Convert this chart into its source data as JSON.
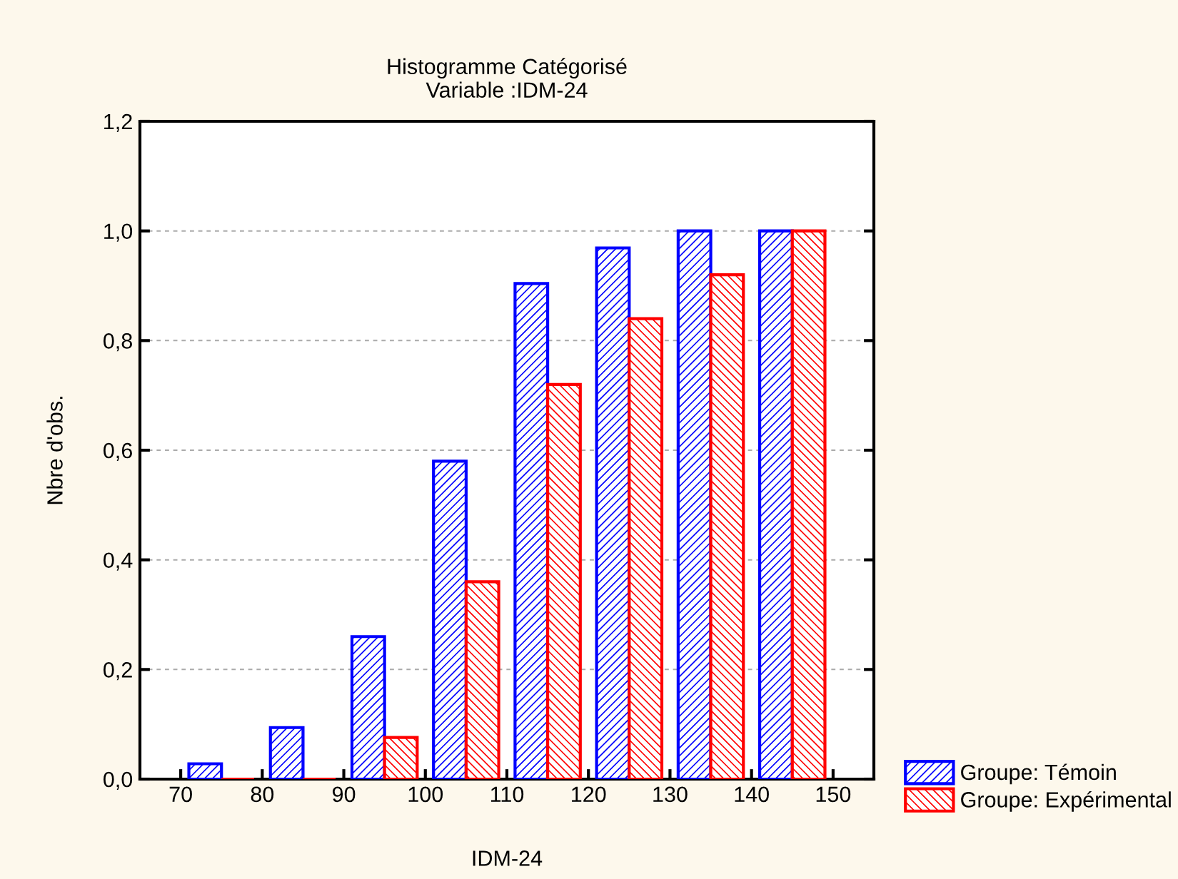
{
  "chart_data": {
    "type": "histogram",
    "title": "Histogramme Catégorisé\nVariable :IDM-24",
    "xlabel": "IDM-24",
    "ylabel": "Nbre d'obs.",
    "bins": [
      70,
      80,
      90,
      100,
      110,
      120,
      130,
      140,
      150
    ],
    "series": [
      {
        "name": "Groupe: Témoin",
        "color": "#0000ff",
        "values": [
          0.028,
          0.094,
          0.26,
          0.58,
          0.904,
          0.969,
          1.0,
          1.0
        ]
      },
      {
        "name": "Groupe: Expérimental",
        "color": "#ff0000",
        "values": [
          0,
          0,
          0.076,
          0.36,
          0.72,
          0.84,
          0.92,
          1.0
        ]
      }
    ],
    "xlim": [
      65,
      155
    ],
    "xticks": [
      70,
      80,
      90,
      100,
      110,
      120,
      130,
      140,
      150
    ],
    "ylim": [
      0,
      1.2
    ],
    "yticks": [
      {
        "value": 0,
        "label": "0,0"
      },
      {
        "value": 0.2,
        "label": "0,2"
      },
      {
        "value": 0.4,
        "label": "0,4"
      },
      {
        "value": 0.6,
        "label": "0,6"
      },
      {
        "value": 0.8,
        "label": "0,8"
      },
      {
        "value": 1.0,
        "label": "1,0"
      },
      {
        "value": 1.2,
        "label": "1,2"
      }
    ],
    "grid": "y",
    "legend": "bottom right"
  }
}
